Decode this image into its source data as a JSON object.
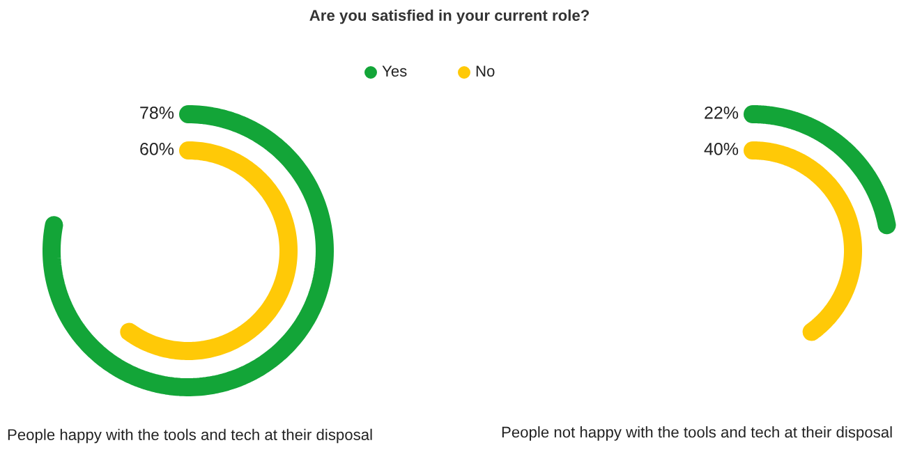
{
  "chart_data": {
    "type": "other",
    "title": "Are you satisfied in your current role?",
    "categories": [
      "People happy with the tools and tech at their disposal",
      "People not happy with the tools and tech at their disposal"
    ],
    "series": [
      {
        "name": "Yes",
        "color": "#13a538",
        "values": [
          78,
          22
        ],
        "value_labels": [
          "78%",
          "22%"
        ]
      },
      {
        "name": "No",
        "color": "#ffc907",
        "values": [
          60,
          40
        ],
        "value_labels": [
          "60%",
          "40%"
        ]
      }
    ],
    "legend": "top"
  }
}
